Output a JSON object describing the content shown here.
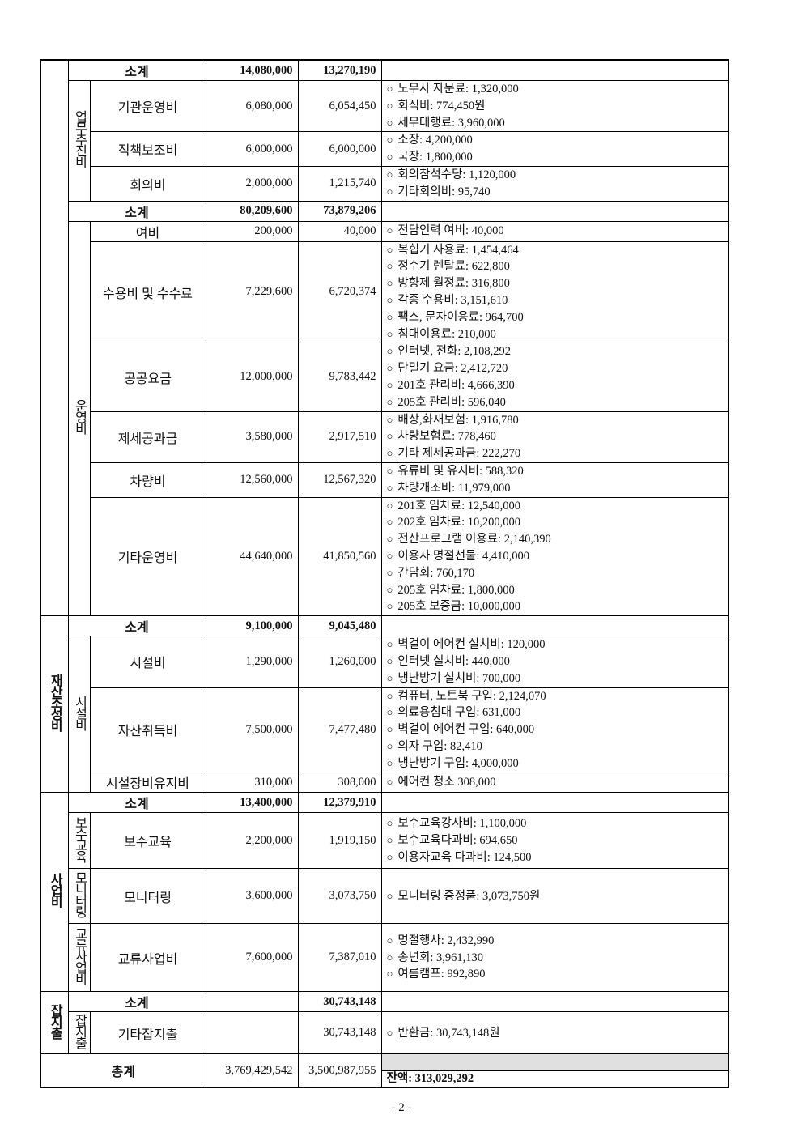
{
  "groups": {
    "g1": "",
    "g2": "재산조성비",
    "g3": "사업비",
    "g4": "잡지출"
  },
  "subgroups": {
    "s1": "업무추진비",
    "s2": "운영비",
    "s3": "시설비",
    "s4": "보수교육",
    "s5": "모니터링",
    "s6": "교류사업비",
    "s7": "잡지출"
  },
  "subtotal_label": "소계",
  "rows": [
    {
      "budget": "14,080,000",
      "spent": "13,270,190"
    },
    {
      "label": "기관운영비",
      "budget": "6,080,000",
      "spent": "6,054,450",
      "details": [
        "노무사 자문료: 1,320,000",
        "회식비: 774,450원",
        "세무대행료: 3,960,000"
      ]
    },
    {
      "label": "직책보조비",
      "budget": "6,000,000",
      "spent": "6,000,000",
      "details": [
        "소장: 4,200,000",
        "국장: 1,800,000"
      ]
    },
    {
      "label": "회의비",
      "budget": "2,000,000",
      "spent": "1,215,740",
      "details": [
        "회의참석수당: 1,120,000",
        "기타회의비: 95,740"
      ]
    },
    {
      "budget": "80,209,600",
      "spent": "73,879,206"
    },
    {
      "label": "여비",
      "budget": "200,000",
      "spent": "40,000",
      "details": [
        "전담인력 여비: 40,000"
      ]
    },
    {
      "label": "수용비 및 수수료",
      "budget": "7,229,600",
      "spent": "6,720,374",
      "details": [
        "복힙기 사용료: 1,454,464",
        "정수기 렌탈료: 622,800",
        "방향제 월정료: 316,800",
        "각종 수용비: 3,151,610",
        "팩스, 문자이용료: 964,700",
        "침대이용료: 210,000"
      ]
    },
    {
      "label": "공공요금",
      "budget": "12,000,000",
      "spent": "9,783,442",
      "details": [
        "인터넷, 전화: 2,108,292",
        "단밀기 요금: 2,412,720",
        "201호 관리비: 4,666,390",
        "205호 관리비: 596,040"
      ]
    },
    {
      "label": "제세공과금",
      "budget": "3,580,000",
      "spent": "2,917,510",
      "details": [
        "배상,화재보험: 1,916,780",
        "차량보험료: 778,460",
        "기타 제세공과금: 222,270"
      ]
    },
    {
      "label": "차량비",
      "budget": "12,560,000",
      "spent": "12,567,320",
      "details": [
        "유류비 및 유지비: 588,320",
        "차량개조비: 11,979,000"
      ]
    },
    {
      "label": "기타운영비",
      "budget": "44,640,000",
      "spent": "41,850,560",
      "details": [
        "201호 임차료: 12,540,000",
        "202호 임차료: 10,200,000",
        "전산프로그램 이용료: 2,140,390",
        "이용자 명절선물: 4,410,000",
        "간담회: 760,170",
        "205호 임차료: 1,800,000",
        "205호 보증금: 10,000,000"
      ]
    },
    {
      "budget": "9,100,000",
      "spent": "9,045,480"
    },
    {
      "label": "시설비",
      "budget": "1,290,000",
      "spent": "1,260,000",
      "details": [
        "벽걸이 에어컨 설치비: 120,000",
        "인터넷 설치비: 440,000",
        "냉난방기 설치비: 700,000"
      ]
    },
    {
      "label": "자산취득비",
      "budget": "7,500,000",
      "spent": "7,477,480",
      "details": [
        "컴퓨터, 노트북 구입: 2,124,070",
        "의료용침대 구입: 631,000",
        "벽걸이 에어컨 구입: 640,000",
        "의자 구입: 82,410",
        "냉난방기 구입: 4,000,000"
      ]
    },
    {
      "label": "시설장비유지비",
      "budget": "310,000",
      "spent": "308,000",
      "details": [
        "에어컨 청소 308,000"
      ]
    },
    {
      "budget": "13,400,000",
      "spent": "12,379,910"
    },
    {
      "label": "보수교육",
      "budget": "2,200,000",
      "spent": "1,919,150",
      "details": [
        "보수교육강사비: 1,100,000",
        "보수교육다과비: 694,650",
        "이용자교육 다과비: 124,500"
      ]
    },
    {
      "label": "모니터링",
      "budget": "3,600,000",
      "spent": "3,073,750",
      "details": [
        "모니터링 증정품: 3,073,750원"
      ]
    },
    {
      "label": "교류사업비",
      "budget": "7,600,000",
      "spent": "7,387,010",
      "details": [
        "명절행사: 2,432,990",
        "송년회: 3,961,130",
        "여름캠프: 992,890"
      ]
    },
    {
      "budget": "",
      "spent": "30,743,148"
    },
    {
      "label": "기타잡지출",
      "budget": "",
      "spent": "30,743,148",
      "details": [
        "반환금: 30,743,148원"
      ]
    }
  ],
  "total": {
    "label": "총계",
    "budget": "3,769,429,542",
    "spent": "3,500,987,955",
    "balance": "잔액: 313,029,292"
  },
  "page_number": "- 2 -"
}
